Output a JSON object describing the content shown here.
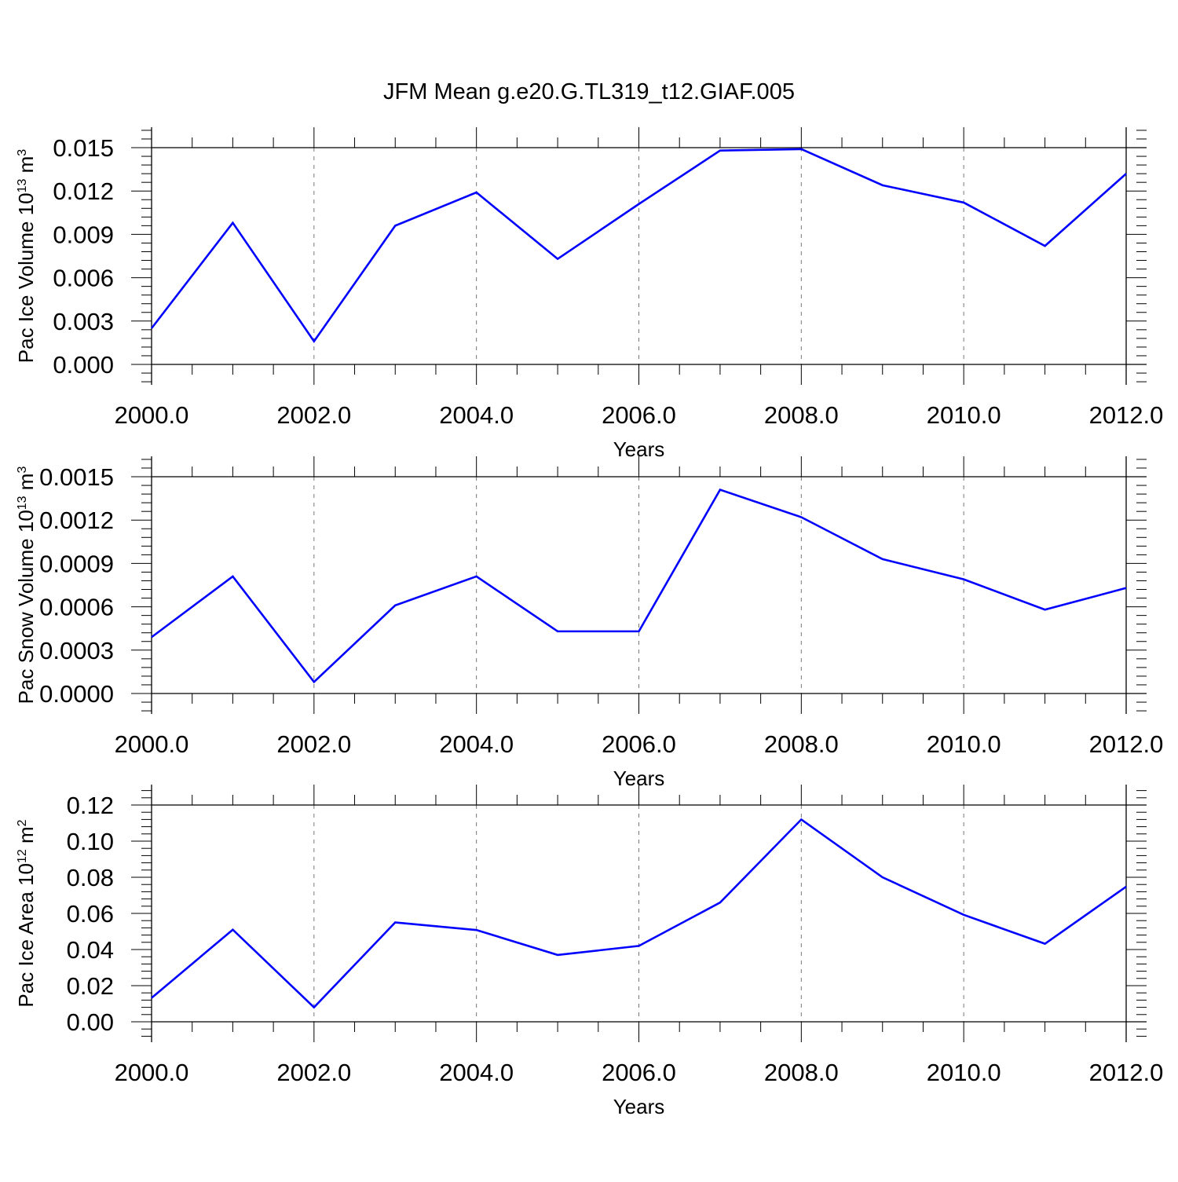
{
  "title": "JFM Mean g.e20.G.TL319_t12.GIAF.005",
  "colors": {
    "series": "#0000ff",
    "axis": "#000000",
    "grid": "#777777"
  },
  "chart_data": [
    {
      "type": "line",
      "title": "",
      "xlabel": "Years",
      "ylabel": {
        "main": "Pac Ice Volume 10",
        "sup1": "13",
        "mid": " m",
        "sup2": "3"
      },
      "xlim": [
        2000,
        2012
      ],
      "ylim": [
        0.0,
        0.015
      ],
      "x_ticks": [
        "2000.0",
        "2002.0",
        "2004.0",
        "2006.0",
        "2008.0",
        "2010.0",
        "2012.0"
      ],
      "y_ticks": [
        "0.000",
        "0.003",
        "0.006",
        "0.009",
        "0.012",
        "0.015"
      ],
      "grid": "vertical dashed at major x ticks",
      "x": [
        2000,
        2001,
        2002,
        2003,
        2004,
        2005,
        2006,
        2007,
        2008,
        2009,
        2010,
        2011,
        2012
      ],
      "series": [
        {
          "values": [
            0.0025,
            0.0098,
            0.0016,
            0.0096,
            0.0119,
            0.0073,
            0.0111,
            0.0148,
            0.0149,
            0.0124,
            0.0112,
            0.0082,
            0.0132
          ]
        }
      ]
    },
    {
      "type": "line",
      "title": "",
      "xlabel": "Years",
      "ylabel": {
        "main": "Pac Snow Volume 10",
        "sup1": "13",
        "mid": " m",
        "sup2": "3"
      },
      "xlim": [
        2000,
        2012
      ],
      "ylim": [
        0.0,
        0.0015
      ],
      "x_ticks": [
        "2000.0",
        "2002.0",
        "2004.0",
        "2006.0",
        "2008.0",
        "2010.0",
        "2012.0"
      ],
      "y_ticks": [
        "0.0000",
        "0.0003",
        "0.0006",
        "0.0009",
        "0.0012",
        "0.0015"
      ],
      "grid": "vertical dashed at major x ticks",
      "x": [
        2000,
        2001,
        2002,
        2003,
        2004,
        2005,
        2006,
        2007,
        2008,
        2009,
        2010,
        2011,
        2012
      ],
      "series": [
        {
          "values": [
            0.00039,
            0.00081,
            8e-05,
            0.00061,
            0.00081,
            0.00043,
            0.00043,
            0.00141,
            0.00122,
            0.00093,
            0.00079,
            0.00058,
            0.00073
          ]
        }
      ]
    },
    {
      "type": "line",
      "title": "",
      "xlabel": "Years",
      "ylabel": {
        "main": "Pac Ice Area 10",
        "sup1": "12",
        "mid": " m",
        "sup2": "2"
      },
      "xlim": [
        2000,
        2012
      ],
      "ylim": [
        0.0,
        0.12
      ],
      "x_ticks": [
        "2000.0",
        "2002.0",
        "2004.0",
        "2006.0",
        "2008.0",
        "2010.0",
        "2012.0"
      ],
      "y_ticks": [
        "0.00",
        "0.02",
        "0.04",
        "0.06",
        "0.08",
        "0.10",
        "0.12"
      ],
      "grid": "vertical dashed at major x ticks",
      "x": [
        2000,
        2001,
        2002,
        2003,
        2004,
        2005,
        2006,
        2007,
        2008,
        2009,
        2010,
        2011,
        2012
      ],
      "series": [
        {
          "values": [
            0.0132,
            0.051,
            0.008,
            0.055,
            0.0508,
            0.037,
            0.042,
            0.066,
            0.112,
            0.08,
            0.0592,
            0.0432,
            0.0748
          ]
        }
      ]
    }
  ]
}
